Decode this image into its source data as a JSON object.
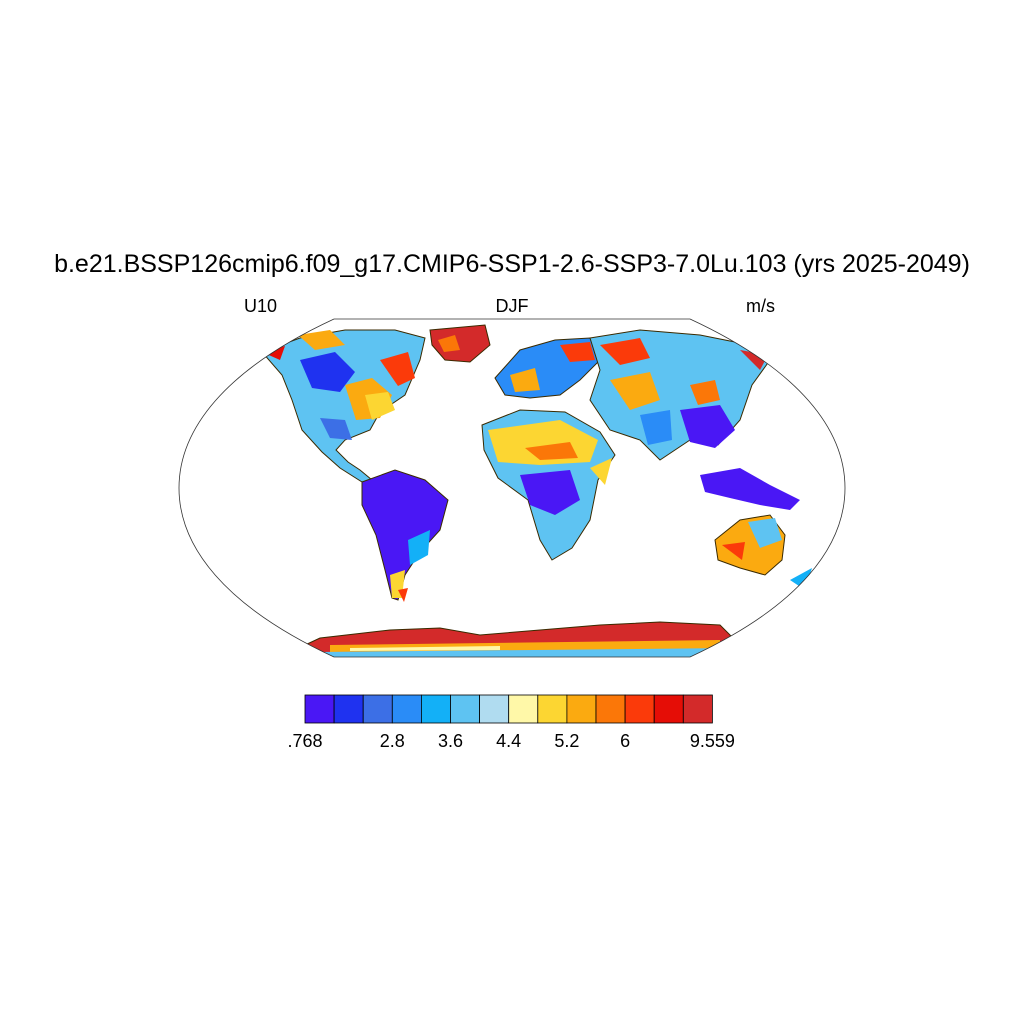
{
  "title": "b.e21.BSSP126cmip6.f09_g17.CMIP6-SSP1-2.6-SSP3-7.0Lu.103 (yrs 2025-2049)",
  "left_label": "U10",
  "center_label": "DJF",
  "right_label": "m/s",
  "colorbar": {
    "colors": [
      "#4a17f5",
      "#1f32f0",
      "#3c6fe6",
      "#2a8cf7",
      "#13b0f7",
      "#5ec3f2",
      "#b0dcf0",
      "#fff8a8",
      "#fcd632",
      "#fbaa10",
      "#fb7708",
      "#fb3a0a",
      "#e50d06",
      "#d32a2a"
    ],
    "tick_labels": [
      ".768",
      "2.8",
      "3.6",
      "4.4",
      "5.2",
      "6",
      "9.559"
    ],
    "tick_box_index": [
      0,
      3,
      5,
      7,
      9,
      11,
      14
    ]
  }
}
